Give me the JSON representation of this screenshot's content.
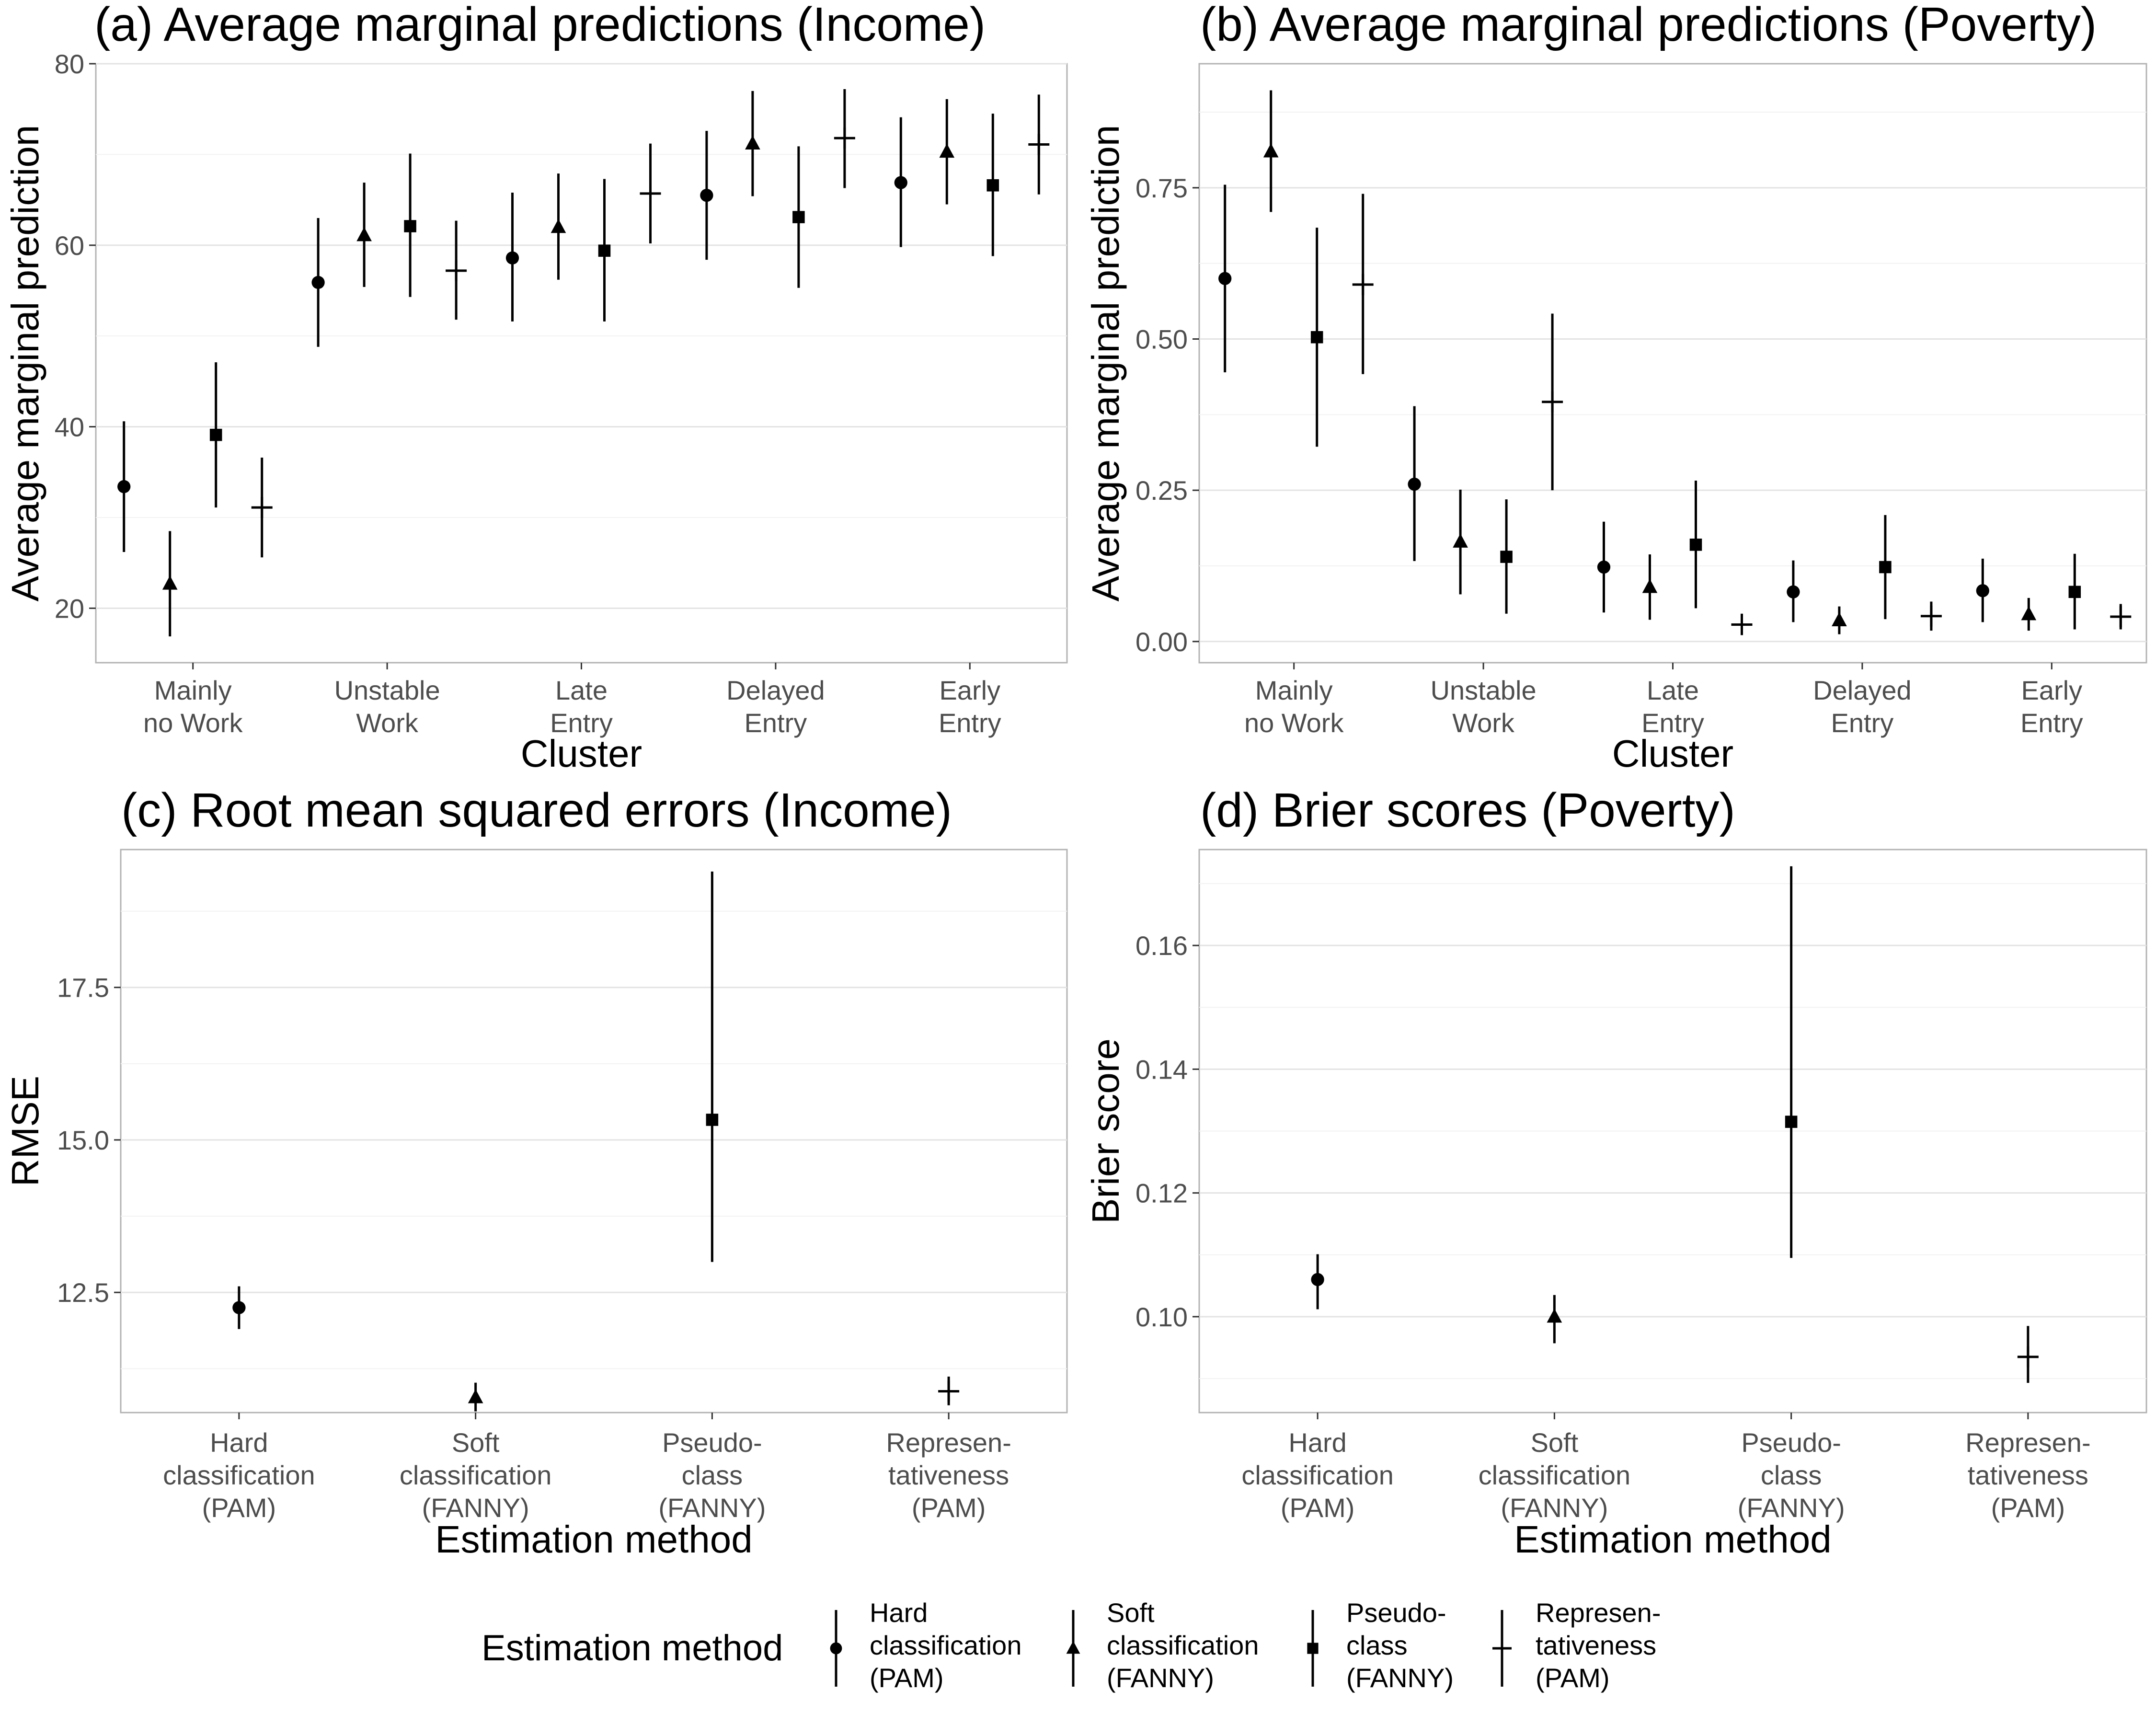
{
  "chart_data": [
    {
      "id": "a",
      "type": "scatter",
      "title": "(a) Average marginal predictions (Income)",
      "xlabel": "Cluster",
      "ylabel": "Average marginal prediction",
      "categories": [
        "Mainly\nno Work",
        "Unstable\nWork",
        "Late\nEntry",
        "Delayed\nEntry",
        "Early\nEntry"
      ],
      "ylim": [
        14,
        80
      ],
      "yticks": [
        20,
        40,
        60,
        80
      ],
      "ytick_labels": [
        "20",
        "40",
        "60",
        "80"
      ],
      "grid": true,
      "series": [
        {
          "name": "Hard classification (PAM)",
          "shape": "circle",
          "values": [
            33.4,
            55.9,
            58.6,
            65.5,
            66.9
          ],
          "lower": [
            26.2,
            48.8,
            51.6,
            58.4,
            59.8
          ],
          "upper": [
            40.6,
            63.0,
            65.8,
            72.6,
            74.1
          ]
        },
        {
          "name": "Soft classification (FANNY)",
          "shape": "triangle",
          "values": [
            22.7,
            61.1,
            62.0,
            71.2,
            70.3
          ],
          "lower": [
            16.9,
            55.4,
            56.2,
            65.4,
            64.5
          ],
          "upper": [
            28.5,
            66.9,
            67.9,
            77.0,
            76.1
          ]
        },
        {
          "name": "Pseudo-class (FANNY)",
          "shape": "square",
          "values": [
            39.1,
            62.1,
            59.4,
            63.1,
            66.6
          ],
          "lower": [
            31.1,
            54.3,
            51.6,
            55.3,
            58.8
          ],
          "upper": [
            47.1,
            70.1,
            67.3,
            70.9,
            74.5
          ]
        },
        {
          "name": "Representativeness (PAM)",
          "shape": "plus",
          "values": [
            31.1,
            57.2,
            65.7,
            71.8,
            71.1
          ],
          "lower": [
            25.6,
            51.8,
            60.2,
            66.3,
            65.6
          ],
          "upper": [
            36.6,
            62.7,
            71.2,
            77.2,
            76.6
          ]
        }
      ]
    },
    {
      "id": "b",
      "type": "scatter",
      "title": "(b) Average marginal predictions (Poverty)",
      "xlabel": "Cluster",
      "ylabel": "Average marginal prediction",
      "categories": [
        "Mainly\nno Work",
        "Unstable\nWork",
        "Late\nEntry",
        "Delayed\nEntry",
        "Early\nEntry"
      ],
      "ylim": [
        -0.035,
        0.955
      ],
      "yticks": [
        0.0,
        0.25,
        0.5,
        0.75
      ],
      "ytick_labels": [
        "0.00",
        "0.25",
        "0.50",
        "0.75"
      ],
      "grid": true,
      "series": [
        {
          "name": "Hard classification (PAM)",
          "shape": "circle",
          "values": [
            0.6,
            0.26,
            0.123,
            0.082,
            0.084
          ],
          "lower": [
            0.445,
            0.133,
            0.048,
            0.032,
            0.032
          ],
          "upper": [
            0.755,
            0.389,
            0.198,
            0.134,
            0.137
          ]
        },
        {
          "name": "Soft classification (FANNY)",
          "shape": "triangle",
          "values": [
            0.81,
            0.165,
            0.09,
            0.035,
            0.045
          ],
          "lower": [
            0.71,
            0.078,
            0.036,
            0.012,
            0.018
          ],
          "upper": [
            0.911,
            0.251,
            0.144,
            0.058,
            0.072
          ]
        },
        {
          "name": "Pseudo-class (FANNY)",
          "shape": "square",
          "values": [
            0.503,
            0.14,
            0.16,
            0.123,
            0.082
          ],
          "lower": [
            0.322,
            0.046,
            0.055,
            0.037,
            0.02
          ],
          "upper": [
            0.684,
            0.235,
            0.266,
            0.209,
            0.145
          ]
        },
        {
          "name": "Representativeness (PAM)",
          "shape": "plus",
          "values": [
            0.59,
            0.396,
            0.028,
            0.042,
            0.041
          ],
          "lower": [
            0.442,
            0.25,
            0.011,
            0.018,
            0.02
          ],
          "upper": [
            0.74,
            0.542,
            0.046,
            0.066,
            0.062
          ]
        }
      ]
    },
    {
      "id": "c",
      "type": "scatter",
      "title": "(c) Root mean squared errors (Income)",
      "xlabel": "Estimation method",
      "ylabel": "RMSE",
      "categories": [
        "Hard\nclassification\n(PAM)",
        "Soft\nclassification\n(FANNY)",
        "Pseudo-\nclass\n(FANNY)",
        "Represen-\ntativeness\n(PAM)"
      ],
      "ylim": [
        10.53,
        19.76
      ],
      "yticks": [
        12.5,
        15.0,
        17.5
      ],
      "ytick_labels": [
        "12.5",
        "15.0",
        "17.5"
      ],
      "grid": true,
      "series": [
        {
          "name": "Hard classification (PAM)",
          "shape": "circle",
          "x": 0,
          "value": 12.25,
          "lower": 11.9,
          "upper": 12.6
        },
        {
          "name": "Soft classification (FANNY)",
          "shape": "triangle",
          "x": 1,
          "value": 10.78,
          "lower": 10.55,
          "upper": 11.02
        },
        {
          "name": "Pseudo-class (FANNY)",
          "shape": "square",
          "x": 2,
          "value": 15.33,
          "lower": 13.0,
          "upper": 19.4
        },
        {
          "name": "Representativeness (PAM)",
          "shape": "plus",
          "x": 3,
          "value": 10.88,
          "lower": 10.65,
          "upper": 11.12
        }
      ]
    },
    {
      "id": "d",
      "type": "scatter",
      "title": "(d)  Brier scores (Poverty)",
      "xlabel": "Estimation method",
      "ylabel": "Brier score",
      "categories": [
        "Hard\nclassification\n(PAM)",
        "Soft\nclassification\n(FANNY)",
        "Pseudo-\nclass\n(FANNY)",
        "Represen-\ntativeness\n(PAM)"
      ],
      "ylim": [
        0.0845,
        0.1755
      ],
      "yticks": [
        0.1,
        0.12,
        0.14,
        0.16
      ],
      "ytick_labels": [
        "0.10",
        "0.12",
        "0.14",
        "0.16"
      ],
      "grid": true,
      "series": [
        {
          "name": "Hard classification (PAM)",
          "shape": "circle",
          "x": 0,
          "value": 0.106,
          "lower": 0.1012,
          "upper": 0.1101
        },
        {
          "name": "Soft classification (FANNY)",
          "shape": "triangle",
          "x": 1,
          "value": 0.1,
          "lower": 0.0957,
          "upper": 0.1035
        },
        {
          "name": "Pseudo-class (FANNY)",
          "shape": "square",
          "x": 2,
          "value": 0.1315,
          "lower": 0.1095,
          "upper": 0.1728
        },
        {
          "name": "Representativeness (PAM)",
          "shape": "plus",
          "x": 3,
          "value": 0.0935,
          "lower": 0.0893,
          "upper": 0.0985
        }
      ]
    }
  ],
  "legend": {
    "title": "Estimation method",
    "placement": "bottom",
    "items": [
      {
        "shape": "circle",
        "label": "Hard\nclassification\n(PAM)"
      },
      {
        "shape": "triangle",
        "label": "Soft\nclassification\n(FANNY)"
      },
      {
        "shape": "square",
        "label": "Pseudo-\nclass\n(FANNY)"
      },
      {
        "shape": "plus",
        "label": "Represen-\ntativeness\n(PAM)"
      }
    ]
  }
}
